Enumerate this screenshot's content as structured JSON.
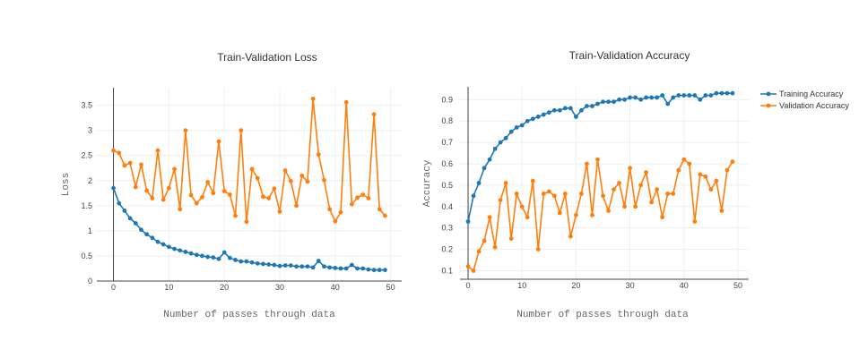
{
  "colors": {
    "training": "#1f77b4",
    "validation": "#ff7f0e"
  },
  "legend": {
    "placement": "top-right",
    "entries": [
      "Training Accuracy",
      "Validation Accuracy"
    ]
  },
  "chart_data": [
    {
      "type": "line",
      "title": "Train-Validation Loss",
      "xlabel": "Number of passes through data",
      "ylabel": "Loss",
      "xlim": [
        -3,
        52
      ],
      "ylim": [
        0,
        3.85
      ],
      "xticks": [
        "0",
        "10",
        "20",
        "30",
        "40",
        "50"
      ],
      "yticks": [
        "0",
        "0.5",
        "1",
        "1.5",
        "2",
        "2.5",
        "3",
        "3.5"
      ],
      "grid": true,
      "x": [
        0,
        1,
        2,
        3,
        4,
        5,
        6,
        7,
        8,
        9,
        10,
        11,
        12,
        13,
        14,
        15,
        16,
        17,
        18,
        19,
        20,
        21,
        22,
        23,
        24,
        25,
        26,
        27,
        28,
        29,
        30,
        31,
        32,
        33,
        34,
        35,
        36,
        37,
        38,
        39,
        40,
        41,
        42,
        43,
        44,
        45,
        46,
        47,
        48,
        49
      ],
      "series": [
        {
          "key": "training",
          "values": [
            1.85,
            1.55,
            1.4,
            1.25,
            1.15,
            1.02,
            0.93,
            0.86,
            0.78,
            0.73,
            0.68,
            0.64,
            0.61,
            0.58,
            0.55,
            0.52,
            0.5,
            0.48,
            0.47,
            0.44,
            0.57,
            0.46,
            0.42,
            0.39,
            0.39,
            0.37,
            0.35,
            0.34,
            0.33,
            0.32,
            0.3,
            0.31,
            0.31,
            0.29,
            0.29,
            0.29,
            0.27,
            0.4,
            0.29,
            0.27,
            0.26,
            0.25,
            0.25,
            0.32,
            0.25,
            0.25,
            0.23,
            0.22,
            0.22,
            0.22
          ]
        },
        {
          "key": "validation",
          "values": [
            2.6,
            2.55,
            2.3,
            2.35,
            1.87,
            2.32,
            1.8,
            1.65,
            2.6,
            1.62,
            1.85,
            2.23,
            1.43,
            3.0,
            1.71,
            1.55,
            1.67,
            1.97,
            1.75,
            2.78,
            1.79,
            1.72,
            1.3,
            3.0,
            1.18,
            2.23,
            2.05,
            1.68,
            1.65,
            1.84,
            1.38,
            2.2,
            1.99,
            1.5,
            2.1,
            1.98,
            3.63,
            2.52,
            2.01,
            1.43,
            1.19,
            1.37,
            3.56,
            1.53,
            1.66,
            1.72,
            1.65,
            3.32,
            1.43,
            1.3
          ]
        }
      ]
    },
    {
      "type": "line",
      "title": "Train-Validation Accuracy",
      "xlabel": "Number of passes through data",
      "ylabel": "Accuracy",
      "xlim": [
        -1.5,
        52
      ],
      "ylim": [
        0.06,
        0.96
      ],
      "xticks": [
        "0",
        "10",
        "20",
        "30",
        "40",
        "50"
      ],
      "yticks": [
        "0.1",
        "0.2",
        "0.3",
        "0.4",
        "0.5",
        "0.6",
        "0.7",
        "0.8",
        "0.9"
      ],
      "grid": true,
      "x": [
        0,
        1,
        2,
        3,
        4,
        5,
        6,
        7,
        8,
        9,
        10,
        11,
        12,
        13,
        14,
        15,
        16,
        17,
        18,
        19,
        20,
        21,
        22,
        23,
        24,
        25,
        26,
        27,
        28,
        29,
        30,
        31,
        32,
        33,
        34,
        35,
        36,
        37,
        38,
        39,
        40,
        41,
        42,
        43,
        44,
        45,
        46,
        47,
        48,
        49
      ],
      "series": [
        {
          "name": "Training Accuracy",
          "key": "training",
          "values": [
            0.33,
            0.45,
            0.51,
            0.58,
            0.62,
            0.67,
            0.7,
            0.72,
            0.75,
            0.77,
            0.78,
            0.8,
            0.81,
            0.82,
            0.83,
            0.84,
            0.85,
            0.85,
            0.86,
            0.86,
            0.82,
            0.85,
            0.87,
            0.87,
            0.88,
            0.89,
            0.89,
            0.89,
            0.9,
            0.9,
            0.91,
            0.91,
            0.9,
            0.91,
            0.91,
            0.91,
            0.92,
            0.88,
            0.91,
            0.92,
            0.92,
            0.92,
            0.92,
            0.9,
            0.92,
            0.92,
            0.93,
            0.93,
            0.93,
            0.93
          ]
        },
        {
          "name": "Validation Accuracy",
          "key": "validation",
          "values": [
            0.12,
            0.1,
            0.19,
            0.24,
            0.35,
            0.21,
            0.43,
            0.51,
            0.25,
            0.46,
            0.4,
            0.35,
            0.52,
            0.2,
            0.46,
            0.47,
            0.45,
            0.37,
            0.46,
            0.26,
            0.36,
            0.46,
            0.6,
            0.36,
            0.62,
            0.45,
            0.38,
            0.48,
            0.51,
            0.4,
            0.58,
            0.4,
            0.5,
            0.56,
            0.42,
            0.48,
            0.35,
            0.46,
            0.46,
            0.57,
            0.62,
            0.6,
            0.33,
            0.55,
            0.54,
            0.48,
            0.52,
            0.38,
            0.57,
            0.61
          ]
        }
      ]
    }
  ]
}
